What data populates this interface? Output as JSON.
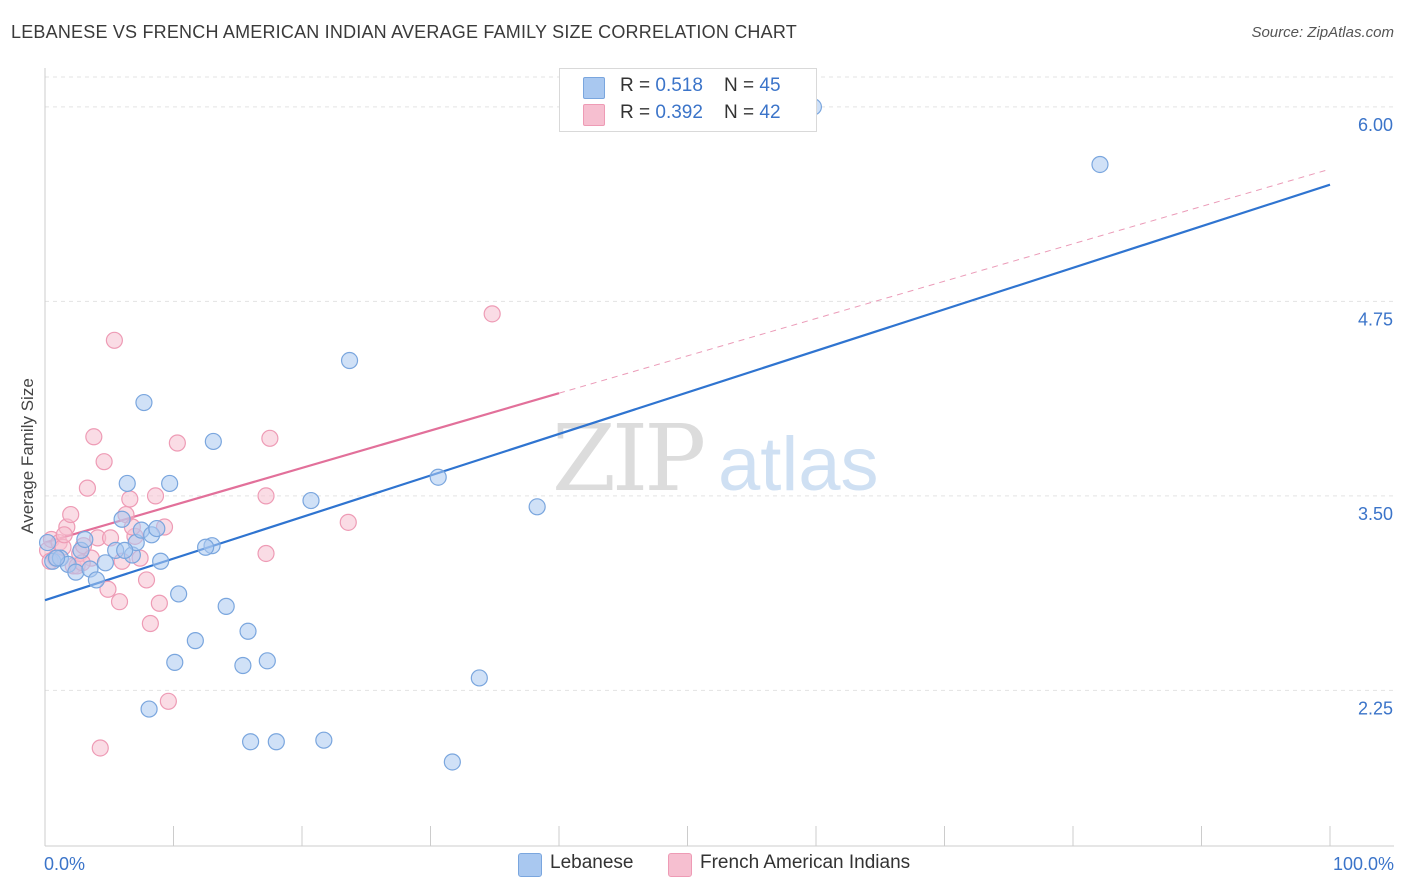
{
  "title": "LEBANESE VS FRENCH AMERICAN INDIAN AVERAGE FAMILY SIZE CORRELATION CHART",
  "source": "Source: ZipAtlas.com",
  "watermark": {
    "zip": "ZIP",
    "atlas": "atlas"
  },
  "colors": {
    "blue_fill": "#a9c8f0",
    "blue_stroke": "#7aa6de",
    "blue_line": "#2f74d0",
    "pink_fill": "#f6bfd0",
    "pink_stroke": "#ee9bb5",
    "pink_line": "#e2709a",
    "tick_label": "#3b74c9",
    "grid": "#e3e3e3"
  },
  "legend": {
    "rows": [
      {
        "r_label": "R = ",
        "r_value": "0.518",
        "n_label": "N = ",
        "n_value": "45"
      },
      {
        "r_label": "R = ",
        "r_value": "0.392",
        "n_label": "N = ",
        "n_value": "42"
      }
    ]
  },
  "bottom_legend": {
    "series1": "Lebanese",
    "series2": "French American Indians"
  },
  "chart_data": {
    "type": "scatter",
    "ylabel": "Average Family Size",
    "x_tick_labels": [
      "0.0%",
      "100.0%"
    ],
    "y_tick_labels": [
      "2.25",
      "3.50",
      "4.75",
      "6.00"
    ],
    "xlim": [
      0,
      100
    ],
    "ylim": [
      1.25,
      6.25
    ],
    "y_ticks": [
      2.25,
      3.5,
      4.75,
      6.0
    ],
    "grid": true,
    "legend_position": "top-center",
    "series": [
      {
        "name": "Lebanese",
        "r": 0.518,
        "n": 45,
        "trend": {
          "x0": 0,
          "y0": 2.83,
          "x1": 100,
          "y1": 5.5
        },
        "points": [
          [
            0.2,
            3.2
          ],
          [
            0.6,
            3.08
          ],
          [
            1.2,
            3.1
          ],
          [
            1.8,
            3.06
          ],
          [
            2.4,
            3.01
          ],
          [
            2.8,
            3.15
          ],
          [
            3.1,
            3.22
          ],
          [
            3.5,
            3.03
          ],
          [
            4.0,
            2.96
          ],
          [
            4.7,
            3.07
          ],
          [
            5.5,
            3.15
          ],
          [
            6.0,
            3.35
          ],
          [
            6.4,
            3.58
          ],
          [
            6.8,
            3.12
          ],
          [
            7.1,
            3.2
          ],
          [
            7.5,
            3.28
          ],
          [
            7.7,
            4.1
          ],
          [
            8.1,
            2.13
          ],
          [
            8.3,
            3.25
          ],
          [
            8.7,
            3.29
          ],
          [
            9.7,
            3.58
          ],
          [
            10.1,
            2.43
          ],
          [
            10.4,
            2.87
          ],
          [
            11.7,
            2.57
          ],
          [
            13.1,
            3.85
          ],
          [
            14.1,
            2.79
          ],
          [
            15.4,
            2.41
          ],
          [
            15.8,
            2.63
          ],
          [
            16.0,
            1.92
          ],
          [
            17.3,
            2.44
          ],
          [
            18.0,
            1.92
          ],
          [
            20.7,
            3.47
          ],
          [
            21.7,
            1.93
          ],
          [
            23.7,
            4.37
          ],
          [
            30.6,
            3.62
          ],
          [
            31.7,
            1.79
          ],
          [
            33.8,
            2.33
          ],
          [
            38.3,
            3.43
          ],
          [
            59.8,
            6.0
          ],
          [
            82.1,
            5.63
          ],
          [
            13.0,
            3.18
          ],
          [
            12.5,
            3.17
          ],
          [
            6.2,
            3.15
          ],
          [
            9.0,
            3.08
          ],
          [
            0.9,
            3.1
          ]
        ]
      },
      {
        "name": "French American Indians",
        "r": 0.392,
        "n": 42,
        "trend": {
          "x0": 0,
          "y0": 3.2,
          "x1": 40,
          "y1": 4.16
        },
        "extension": {
          "x0": 40,
          "y0": 4.16,
          "x1": 100,
          "y1": 5.6
        },
        "points": [
          [
            0.2,
            3.15
          ],
          [
            0.5,
            3.22
          ],
          [
            0.8,
            3.1
          ],
          [
            1.1,
            3.2
          ],
          [
            1.4,
            3.17
          ],
          [
            1.7,
            3.3
          ],
          [
            2.0,
            3.38
          ],
          [
            2.2,
            3.05
          ],
          [
            2.5,
            3.05
          ],
          [
            2.7,
            3.13
          ],
          [
            3.0,
            3.18
          ],
          [
            3.3,
            3.55
          ],
          [
            3.6,
            3.1
          ],
          [
            3.8,
            3.88
          ],
          [
            4.1,
            3.23
          ],
          [
            4.3,
            1.88
          ],
          [
            4.6,
            3.72
          ],
          [
            4.9,
            2.9
          ],
          [
            5.1,
            3.23
          ],
          [
            5.4,
            4.5
          ],
          [
            5.8,
            2.82
          ],
          [
            6.0,
            3.08
          ],
          [
            6.3,
            3.38
          ],
          [
            6.6,
            3.48
          ],
          [
            7.0,
            3.24
          ],
          [
            7.4,
            3.1
          ],
          [
            7.9,
            2.96
          ],
          [
            8.2,
            2.68
          ],
          [
            8.6,
            3.5
          ],
          [
            8.9,
            2.81
          ],
          [
            9.3,
            3.3
          ],
          [
            9.6,
            2.18
          ],
          [
            10.3,
            3.84
          ],
          [
            17.2,
            3.5
          ],
          [
            17.5,
            3.87
          ],
          [
            17.2,
            3.13
          ],
          [
            23.6,
            3.33
          ],
          [
            34.8,
            4.67
          ],
          [
            1.5,
            3.25
          ],
          [
            2.9,
            3.07
          ],
          [
            6.8,
            3.3
          ],
          [
            0.4,
            3.08
          ]
        ]
      }
    ]
  }
}
